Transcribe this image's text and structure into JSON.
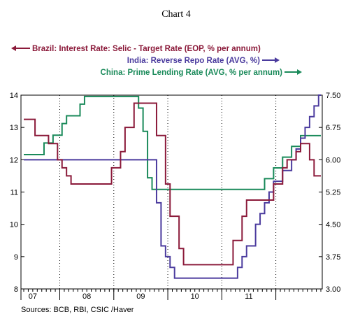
{
  "chart_data": {
    "type": "line",
    "title": "Chart 4",
    "source": "Sources:  BCB, RBI, CSIC /Haver",
    "xlabel": "",
    "x": {
      "start": 2006.333,
      "end": 2011.833,
      "tick_labels": [
        "07",
        "08",
        "09",
        "10",
        "11"
      ],
      "tick_label_positions": [
        2007.5,
        2008.5,
        2009.5,
        2010.5,
        2011.5
      ],
      "year_boundaries": [
        2007,
        2008,
        2009,
        2010,
        2011
      ]
    },
    "y_left": {
      "min": 8,
      "max": 14,
      "ticks": [
        8,
        9,
        10,
        11,
        12,
        13,
        14
      ],
      "tick_labels": [
        "8",
        "9",
        "10",
        "11",
        "12",
        "13",
        "14"
      ]
    },
    "y_right": {
      "min": 3.0,
      "max": 7.5,
      "ticks": [
        3.0,
        3.75,
        4.5,
        5.25,
        6.0,
        6.75,
        7.5
      ],
      "tick_labels": [
        "3.00",
        "3.75",
        "4.50",
        "5.25",
        "6.00",
        "6.75",
        "7.50"
      ]
    },
    "grid": {
      "vertical_dotted_at_year_boundaries": true,
      "horizontal": false
    },
    "series": [
      {
        "name": "Brazil: Interest Rate: Selic - Target Rate (EOP, % per annum)",
        "axis": "left",
        "legend_arrow": "left",
        "color": "#8b1a3a",
        "points": [
          [
            2006.333,
            13.25
          ],
          [
            2006.417,
            13.25
          ],
          [
            2006.5,
            13.0
          ],
          [
            2006.667,
            13.0
          ],
          [
            2006.75,
            12.75
          ],
          [
            2006.917,
            12.5
          ],
          [
            2007.0,
            12.5
          ],
          [
            2007.083,
            12.25
          ],
          [
            2007.25,
            11.75
          ],
          [
            2007.333,
            11.5
          ],
          [
            2007.417,
            11.5
          ],
          [
            2007.583,
            11.25
          ],
          [
            2008.333,
            11.25
          ],
          [
            2008.417,
            11.75
          ],
          [
            2008.583,
            11.75
          ],
          [
            2008.75,
            12.25
          ],
          [
            2008.833,
            13.0
          ],
          [
            2009.0,
            13.0
          ],
          [
            2009.083,
            13.75
          ],
          [
            2009.5,
            13.75
          ],
          [
            2009.583,
            12.75
          ],
          [
            2009.75,
            12.75
          ],
          [
            2009.833,
            11.25
          ],
          [
            2009.917,
            10.25
          ],
          [
            2010.083,
            10.25
          ],
          [
            2010.167,
            9.25
          ],
          [
            2010.25,
            8.75
          ],
          [
            2011.417,
            8.75
          ],
          [
            2011.5,
            9.5
          ],
          [
            2011.583,
            9.5
          ],
          [
            2011.667,
            10.25
          ],
          [
            2011.75,
            10.75
          ],
          [
            2011.833,
            10.75
          ]
        ],
        "note": "x positions above are plotted along a compressed axis; see script for mapping"
      },
      {
        "name": "India: Reverse Repo Rate (AVG, %)",
        "axis": "right",
        "legend_arrow": "right",
        "color": "#4b3b9e",
        "points": []
      },
      {
        "name": "China: Prime Lending Rate (AVG, % per annum)",
        "axis": "right",
        "legend_arrow": "right",
        "color": "#1a8a5a",
        "points": []
      }
    ],
    "months": {
      "start": "2006-05",
      "brazil_selic": [
        13.25,
        13.25,
        13.25,
        12.75,
        12.75,
        12.75,
        12.5,
        12.5,
        12.0,
        11.75,
        11.5,
        11.25,
        11.25,
        11.25,
        11.25,
        11.25,
        11.25,
        11.25,
        11.25,
        11.25,
        11.75,
        11.75,
        12.25,
        13.0,
        13.0,
        13.75,
        13.75,
        13.75,
        13.75,
        13.75,
        12.75,
        12.75,
        11.25,
        10.25,
        10.25,
        9.25,
        8.75,
        8.75,
        8.75,
        8.75,
        8.75,
        8.75,
        8.75,
        8.75,
        8.75,
        8.75,
        8.75,
        9.5,
        9.5,
        10.25,
        10.75,
        10.75,
        10.75,
        10.75,
        10.75,
        10.75,
        11.25,
        11.25,
        11.75,
        12.0,
        12.0,
        12.25,
        12.5,
        12.5,
        12.0,
        11.5,
        11.5
      ],
      "india_reverse_repo": [
        6.0,
        6.0,
        6.0,
        6.0,
        6.0,
        6.0,
        6.0,
        6.0,
        6.0,
        6.0,
        6.0,
        6.0,
        6.0,
        6.0,
        6.0,
        6.0,
        6.0,
        6.0,
        6.0,
        6.0,
        6.0,
        6.0,
        6.0,
        6.0,
        6.0,
        6.0,
        6.0,
        6.0,
        6.0,
        6.0,
        5.0,
        4.0,
        3.75,
        3.5,
        3.25,
        3.25,
        3.25,
        3.25,
        3.25,
        3.25,
        3.25,
        3.25,
        3.25,
        3.25,
        3.25,
        3.25,
        3.25,
        3.25,
        3.5,
        3.75,
        4.0,
        4.0,
        4.5,
        4.75,
        5.0,
        5.25,
        5.5,
        5.5,
        5.75,
        5.75,
        6.0,
        6.25,
        6.5,
        6.75,
        7.0,
        7.25,
        7.5
      ],
      "china_prime_lending": [
        6.12,
        6.12,
        6.12,
        6.12,
        6.12,
        6.39,
        6.39,
        6.57,
        6.57,
        6.84,
        7.02,
        7.02,
        7.02,
        7.29,
        7.47,
        7.47,
        7.47,
        7.47,
        7.47,
        7.47,
        7.47,
        7.47,
        7.47,
        7.47,
        7.47,
        7.47,
        7.2,
        6.66,
        5.58,
        5.31,
        5.31,
        5.31,
        5.31,
        5.31,
        5.31,
        5.31,
        5.31,
        5.31,
        5.31,
        5.31,
        5.31,
        5.31,
        5.31,
        5.31,
        5.31,
        5.31,
        5.31,
        5.31,
        5.31,
        5.31,
        5.31,
        5.31,
        5.31,
        5.31,
        5.56,
        5.56,
        5.81,
        5.81,
        6.06,
        6.06,
        6.31,
        6.31,
        6.56,
        6.56,
        6.56,
        6.56,
        6.56
      ]
    }
  }
}
